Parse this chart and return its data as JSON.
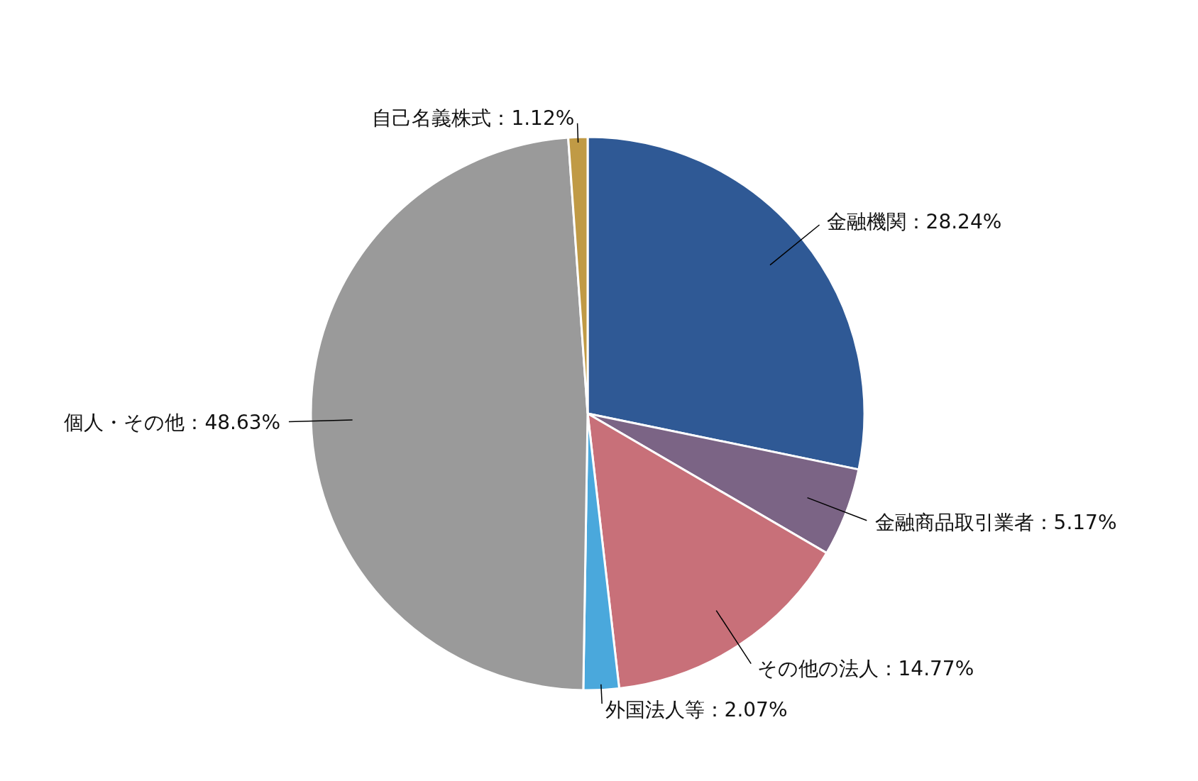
{
  "chart_data": {
    "type": "pie",
    "categories": [
      "金融機関",
      "金融商品取引業者",
      "その他の法人",
      "外国法人等",
      "個人・その他",
      "自己名義株式"
    ],
    "values": [
      28.24,
      5.17,
      14.77,
      2.07,
      48.63,
      1.12
    ],
    "colors": [
      "#2f5995",
      "#7b6485",
      "#c87079",
      "#4aa8dc",
      "#9a9a9a",
      "#c09a45"
    ],
    "value_labels": [
      "28.24%",
      "5.17%",
      "14.77%",
      "2.07%",
      "48.63%",
      "1.12%"
    ]
  }
}
